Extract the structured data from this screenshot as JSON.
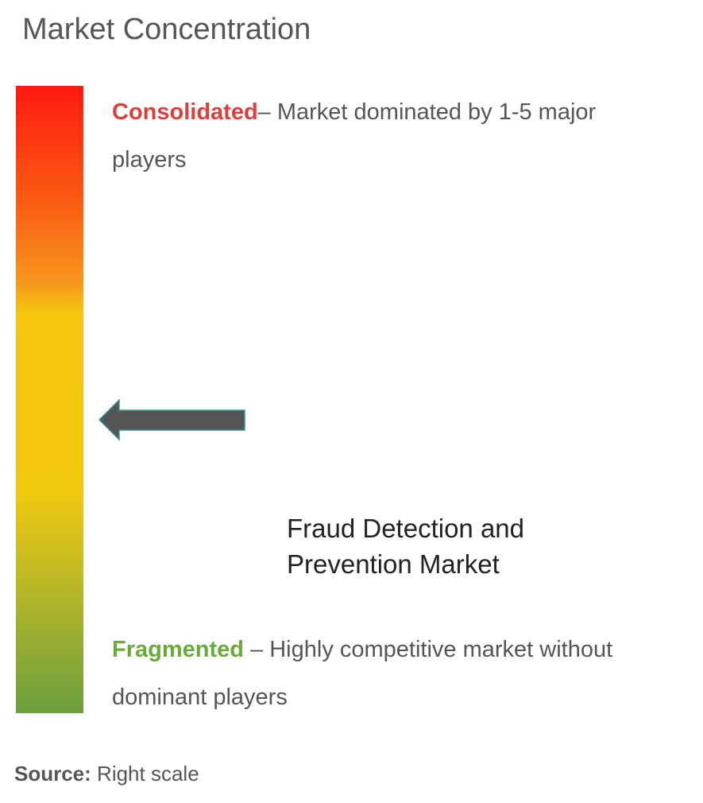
{
  "header": {
    "title": "Market Concentration"
  },
  "scale": {
    "top": {
      "label": "Consolidated",
      "description": "– Market dominated by 1-5 major players"
    },
    "bottom": {
      "label": "Fragmented",
      "description": " – Highly competitive market without dominant players"
    }
  },
  "market": {
    "lines": [
      "Fraud Detection and",
      "Prevention Market"
    ]
  },
  "source": {
    "label": "Source:",
    "text": " Right scale"
  }
}
